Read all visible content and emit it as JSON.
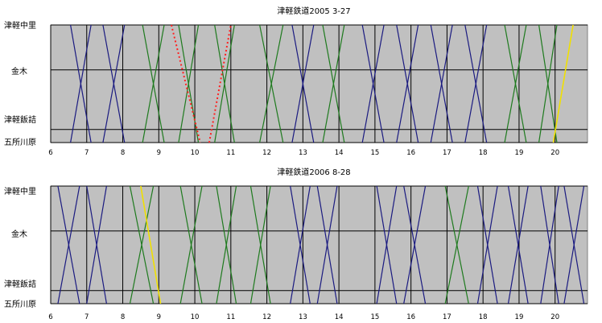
{
  "chart_data": [
    {
      "type": "line",
      "title": "津軽鉄道2005 3-27",
      "x_ticks": [
        "6",
        "7",
        "8",
        "9",
        "10",
        "11",
        "12",
        "13",
        "14",
        "15",
        "16",
        "17",
        "18",
        "19",
        "20"
      ],
      "xlim": [
        6,
        20.9
      ],
      "stations": [
        "津軽中里",
        "金木",
        "津軽飯詰",
        "五所川原"
      ],
      "station_km": [
        20.7,
        12.8,
        2.3,
        0
      ],
      "colors": {
        "ordinary": "#1a1a80",
        "stove": "#1e7a1e",
        "special": "#ff2020",
        "rabbit": "#f0e000"
      },
      "series": [
        {
          "name": "down",
          "kind": "ordinary",
          "x": [
            6.55,
            7.12
          ]
        },
        {
          "name": "up",
          "kind": "ordinary",
          "x": [
            6.55,
            7.12
          ],
          "dir": "up"
        },
        {
          "name": "down",
          "kind": "ordinary",
          "x": [
            7.45,
            8.05
          ]
        },
        {
          "name": "up",
          "kind": "ordinary",
          "x": [
            7.45,
            8.05
          ],
          "dir": "up"
        },
        {
          "name": "down",
          "kind": "stove",
          "x": [
            8.55,
            9.15
          ]
        },
        {
          "name": "up",
          "kind": "stove",
          "x": [
            8.55,
            9.15
          ],
          "dir": "up"
        },
        {
          "name": "down",
          "kind": "stove",
          "x": [
            9.55,
            10.1
          ]
        },
        {
          "name": "up",
          "kind": "stove",
          "x": [
            9.55,
            10.1
          ],
          "dir": "up"
        },
        {
          "name": "down",
          "kind": "stove",
          "x": [
            10.55,
            11.1
          ]
        },
        {
          "name": "up",
          "kind": "stove",
          "x": [
            10.55,
            11.1
          ],
          "dir": "up"
        },
        {
          "name": "down",
          "kind": "stove",
          "x": [
            11.8,
            12.45
          ]
        },
        {
          "name": "up",
          "kind": "stove",
          "x": [
            11.8,
            12.45
          ],
          "dir": "up"
        },
        {
          "name": "down",
          "kind": "ordinary",
          "x": [
            12.7,
            13.3
          ]
        },
        {
          "name": "up",
          "kind": "ordinary",
          "x": [
            12.7,
            13.3
          ],
          "dir": "up"
        },
        {
          "name": "down",
          "kind": "stove",
          "x": [
            13.55,
            14.15
          ]
        },
        {
          "name": "up",
          "kind": "stove",
          "x": [
            13.55,
            14.15
          ],
          "dir": "up"
        },
        {
          "name": "down",
          "kind": "ordinary",
          "x": [
            14.65,
            15.25
          ]
        },
        {
          "name": "up",
          "kind": "ordinary",
          "x": [
            14.65,
            15.25
          ],
          "dir": "up"
        },
        {
          "name": "down",
          "kind": "ordinary",
          "x": [
            15.6,
            16.2
          ]
        },
        {
          "name": "up",
          "kind": "ordinary",
          "x": [
            15.6,
            16.2
          ],
          "dir": "up"
        },
        {
          "name": "down",
          "kind": "ordinary",
          "x": [
            16.55,
            17.15
          ]
        },
        {
          "name": "up",
          "kind": "ordinary",
          "x": [
            16.55,
            17.15
          ],
          "dir": "up"
        },
        {
          "name": "down",
          "kind": "ordinary",
          "x": [
            17.5,
            18.1
          ]
        },
        {
          "name": "up",
          "kind": "ordinary",
          "x": [
            17.5,
            18.1
          ],
          "dir": "up"
        },
        {
          "name": "down",
          "kind": "stove",
          "x": [
            18.6,
            19.2
          ]
        },
        {
          "name": "up",
          "kind": "stove",
          "x": [
            18.6,
            19.2
          ],
          "dir": "up"
        },
        {
          "name": "down",
          "kind": "stove",
          "x": [
            19.55,
            20.05
          ]
        },
        {
          "name": "up",
          "kind": "stove",
          "x": [
            19.55,
            20.05
          ],
          "dir": "up"
        },
        {
          "name": "special-down",
          "kind": "special",
          "x": [
            9.35,
            10.15
          ],
          "dotted": true
        },
        {
          "name": "special-up",
          "kind": "special",
          "x": [
            10.4,
            11.0
          ],
          "dir": "up",
          "dotted": true
        },
        {
          "name": "rabbit-up",
          "kind": "rabbit",
          "x": [
            19.95,
            20.5
          ],
          "dir": "up"
        }
      ]
    },
    {
      "type": "line",
      "title": "津軽鉄道2006 8-28",
      "x_ticks": [
        "6",
        "7",
        "8",
        "9",
        "10",
        "11",
        "12",
        "13",
        "14",
        "15",
        "16",
        "17",
        "18",
        "19",
        "20"
      ],
      "xlim": [
        6,
        20.9
      ],
      "stations": [
        "津軽中里",
        "金木",
        "津軽飯詰",
        "五所川原"
      ],
      "station_km": [
        20.7,
        12.8,
        2.3,
        0
      ],
      "colors": {
        "ordinary": "#1a1a80",
        "stove": "#1e7a1e",
        "special": "#ff2020",
        "rabbit": "#f0e000"
      },
      "series": [
        {
          "name": "down",
          "kind": "ordinary",
          "x": [
            6.2,
            6.8
          ]
        },
        {
          "name": "up",
          "kind": "ordinary",
          "x": [
            6.2,
            6.8
          ],
          "dir": "up"
        },
        {
          "name": "down",
          "kind": "ordinary",
          "x": [
            7.0,
            7.55
          ]
        },
        {
          "name": "up",
          "kind": "ordinary",
          "x": [
            7.0,
            7.55
          ],
          "dir": "up"
        },
        {
          "name": "down",
          "kind": "stove",
          "x": [
            8.2,
            8.85
          ]
        },
        {
          "name": "up",
          "kind": "stove",
          "x": [
            8.2,
            8.85
          ],
          "dir": "up"
        },
        {
          "name": "rabbit-down",
          "kind": "rabbit",
          "x": [
            8.5,
            9.05
          ]
        },
        {
          "name": "down",
          "kind": "stove",
          "x": [
            9.6,
            10.2
          ]
        },
        {
          "name": "up",
          "kind": "stove",
          "x": [
            9.6,
            10.2
          ],
          "dir": "up"
        },
        {
          "name": "down",
          "kind": "stove",
          "x": [
            10.6,
            11.15
          ]
        },
        {
          "name": "up",
          "kind": "stove",
          "x": [
            10.6,
            11.15
          ],
          "dir": "up"
        },
        {
          "name": "down",
          "kind": "stove",
          "x": [
            11.55,
            12.1
          ]
        },
        {
          "name": "up",
          "kind": "stove",
          "x": [
            11.55,
            12.1
          ],
          "dir": "up"
        },
        {
          "name": "down",
          "kind": "ordinary",
          "x": [
            12.65,
            13.2
          ]
        },
        {
          "name": "up",
          "kind": "ordinary",
          "x": [
            12.65,
            13.2
          ],
          "dir": "up"
        },
        {
          "name": "down",
          "kind": "ordinary",
          "x": [
            13.4,
            13.95
          ]
        },
        {
          "name": "up",
          "kind": "ordinary",
          "x": [
            13.4,
            13.95
          ],
          "dir": "up"
        },
        {
          "name": "down",
          "kind": "ordinary",
          "x": [
            15.05,
            15.6
          ]
        },
        {
          "name": "up",
          "kind": "ordinary",
          "x": [
            15.05,
            15.6
          ],
          "dir": "up"
        },
        {
          "name": "down",
          "kind": "ordinary",
          "x": [
            15.8,
            16.4
          ]
        },
        {
          "name": "up",
          "kind": "ordinary",
          "x": [
            15.8,
            16.4
          ],
          "dir": "up"
        },
        {
          "name": "down",
          "kind": "stove",
          "x": [
            16.95,
            17.6
          ]
        },
        {
          "name": "up",
          "kind": "stove",
          "x": [
            16.95,
            17.6
          ],
          "dir": "up"
        },
        {
          "name": "down",
          "kind": "ordinary",
          "x": [
            17.85,
            18.4
          ]
        },
        {
          "name": "up",
          "kind": "ordinary",
          "x": [
            17.85,
            18.4
          ],
          "dir": "up"
        },
        {
          "name": "down",
          "kind": "ordinary",
          "x": [
            18.7,
            19.25
          ]
        },
        {
          "name": "up",
          "kind": "ordinary",
          "x": [
            18.7,
            19.25
          ],
          "dir": "up"
        },
        {
          "name": "down",
          "kind": "ordinary",
          "x": [
            19.6,
            20.1
          ]
        },
        {
          "name": "up",
          "kind": "ordinary",
          "x": [
            19.6,
            20.1
          ],
          "dir": "up"
        },
        {
          "name": "down",
          "kind": "ordinary",
          "x": [
            20.25,
            20.8
          ]
        },
        {
          "name": "up",
          "kind": "ordinary",
          "x": [
            20.25,
            20.8
          ],
          "dir": "up"
        }
      ]
    }
  ]
}
